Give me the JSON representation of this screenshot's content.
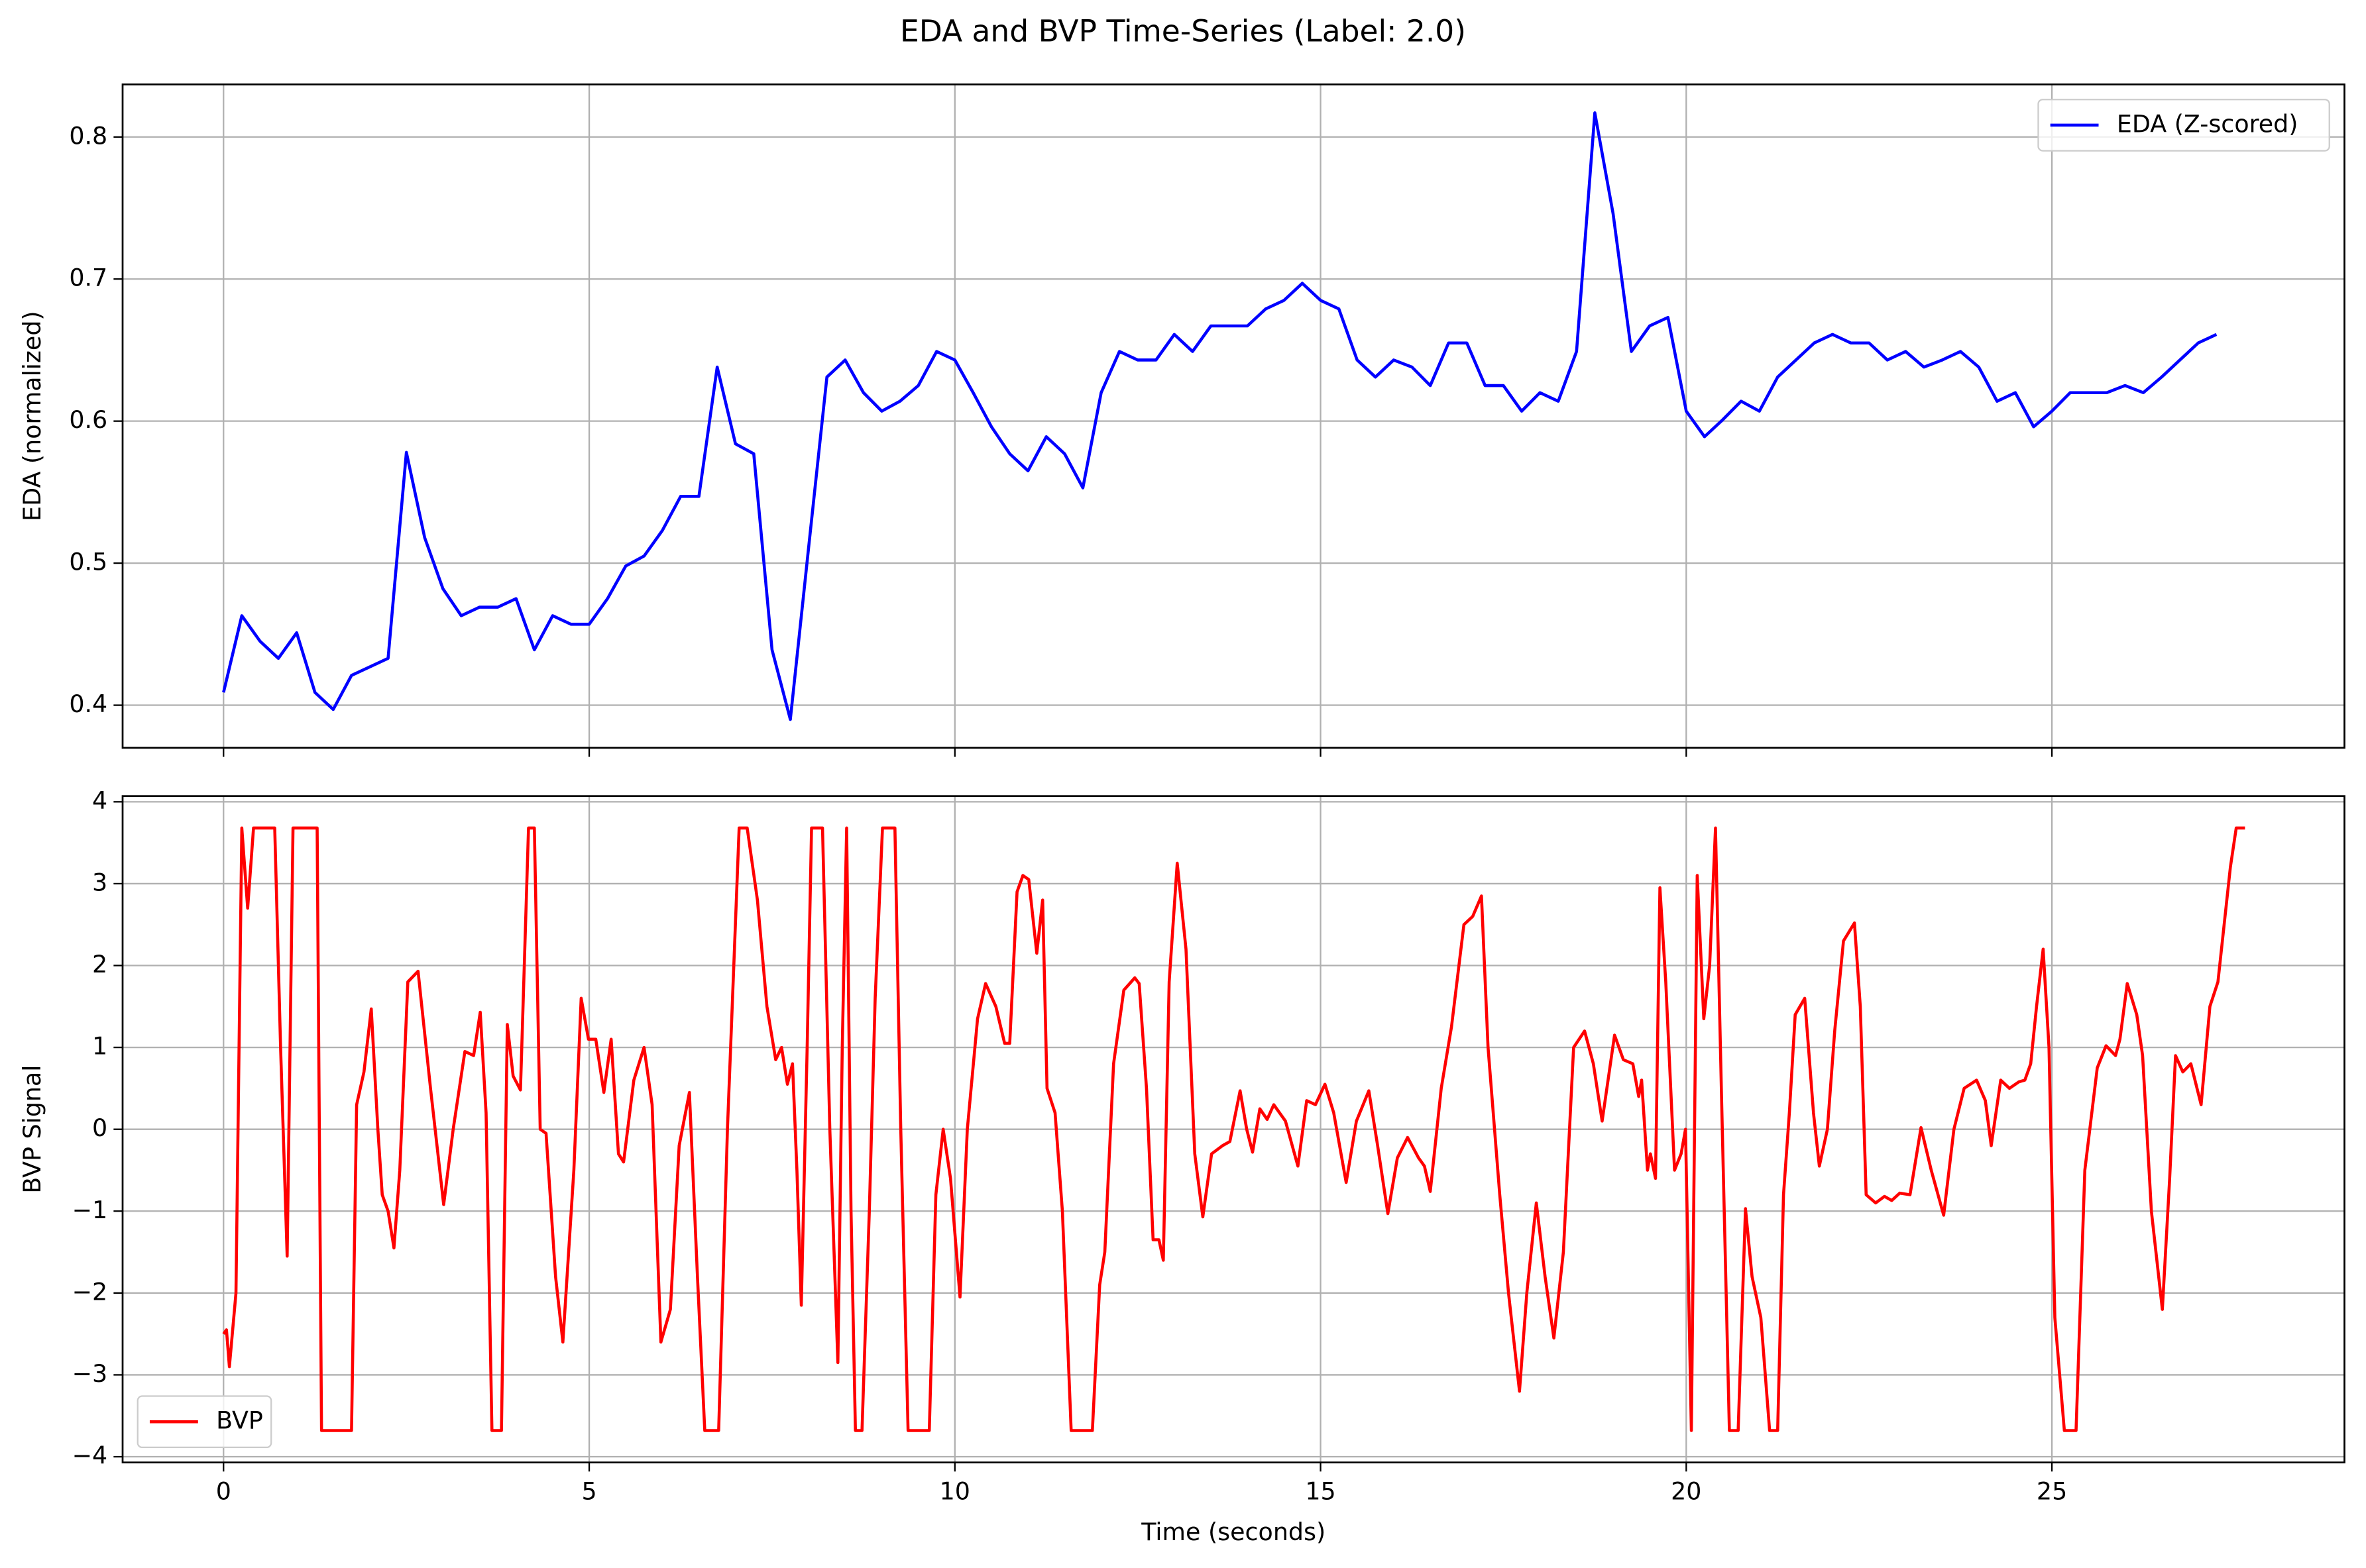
{
  "title": "EDA and BVP Time-Series (Label: 2.0)",
  "chart_data": [
    {
      "type": "line",
      "ylabel": "EDA (normalized)",
      "legend": "upper right",
      "grid": true,
      "show_xticklabels": false,
      "xlim": [
        -1.38,
        29.0
      ],
      "ylim": [
        0.37,
        0.837
      ],
      "xticks": [
        0,
        5,
        10,
        15,
        20,
        25
      ],
      "yticks": [
        0.4,
        0.5,
        0.6,
        0.7,
        0.8
      ],
      "series": [
        {
          "name": "EDA (Z-scored)",
          "color": "#0000ff",
          "x": [
            0,
            0.25,
            0.5,
            0.75,
            1,
            1.25,
            1.5,
            1.75,
            2,
            2.25,
            2.5,
            2.75,
            3,
            3.25,
            3.5,
            3.75,
            4,
            4.25,
            4.5,
            4.75,
            5,
            5.25,
            5.5,
            5.75,
            6,
            6.25,
            6.5,
            6.75,
            7,
            7.25,
            7.5,
            7.75,
            8,
            8.25,
            8.5,
            8.75,
            9,
            9.25,
            9.5,
            9.75,
            10,
            10.25,
            10.5,
            10.75,
            11,
            11.25,
            11.5,
            11.75,
            12,
            12.25,
            12.5,
            12.75,
            13,
            13.25,
            13.5,
            13.75,
            14,
            14.25,
            14.5,
            14.75,
            15,
            15.25,
            15.5,
            15.75,
            16,
            16.25,
            16.5,
            16.75,
            17,
            17.25,
            17.5,
            17.75,
            18,
            18.25,
            18.5,
            18.75,
            19,
            19.25,
            19.5,
            19.75,
            20,
            20.25,
            20.5,
            20.75,
            21,
            21.25,
            21.5,
            21.75,
            22,
            22.25,
            22.5,
            22.75,
            23,
            23.25,
            23.5,
            23.75,
            24,
            24.25,
            24.5,
            24.75,
            25,
            25.25,
            25.5,
            25.75,
            26,
            26.25,
            26.5,
            26.75,
            27,
            27.25
          ],
          "values": [
            0.409,
            0.463,
            0.445,
            0.433,
            0.451,
            0.409,
            0.397,
            0.421,
            0.427,
            0.433,
            0.578,
            0.518,
            0.482,
            0.463,
            0.469,
            0.469,
            0.475,
            0.439,
            0.463,
            0.457,
            0.457,
            0.475,
            0.498,
            0.505,
            0.523,
            0.547,
            0.547,
            0.638,
            0.584,
            0.577,
            0.439,
            0.39,
            0.511,
            0.631,
            0.643,
            0.62,
            0.607,
            0.614,
            0.625,
            0.649,
            0.643,
            0.62,
            0.596,
            0.577,
            0.565,
            0.589,
            0.577,
            0.553,
            0.62,
            0.649,
            0.643,
            0.643,
            0.661,
            0.649,
            0.667,
            0.667,
            0.667,
            0.679,
            0.685,
            0.697,
            0.685,
            0.679,
            0.643,
            0.631,
            0.643,
            0.638,
            0.625,
            0.655,
            0.655,
            0.625,
            0.625,
            0.607,
            0.62,
            0.614,
            0.649,
            0.817,
            0.746,
            0.649,
            0.667,
            0.673,
            0.607,
            0.589,
            0.601,
            0.614,
            0.607,
            0.631,
            0.643,
            0.655,
            0.661,
            0.655,
            0.655,
            0.643,
            0.649,
            0.638,
            0.643,
            0.649,
            0.638,
            0.614,
            0.62,
            0.596,
            0.607,
            0.62,
            0.62,
            0.62,
            0.625,
            0.62,
            0.631,
            0.643,
            0.655,
            0.661
          ]
        }
      ]
    },
    {
      "type": "line",
      "xlabel": "Time (seconds)",
      "ylabel": "BVP Signal",
      "legend": "lower left",
      "grid": true,
      "show_xticklabels": true,
      "xlim": [
        -1.38,
        29.0
      ],
      "ylim": [
        -4.07,
        4.07
      ],
      "xticks": [
        0,
        5,
        10,
        15,
        20,
        25
      ],
      "yticks": [
        {
          "value": -4,
          "label": "−4"
        },
        {
          "value": -3,
          "label": "−3"
        },
        {
          "value": -2,
          "label": "−2"
        },
        {
          "value": -1,
          "label": "−1"
        },
        0,
        1,
        2,
        3,
        4
      ],
      "series": [
        {
          "name": "BVP",
          "color": "#ff0000",
          "x": [
            0,
            0.04,
            0.08,
            0.17,
            0.25,
            0.33,
            0.41,
            0.7,
            0.78,
            0.87,
            0.95,
            1.28,
            1.34,
            1.75,
            1.82,
            1.92,
            2.02,
            2.11,
            2.17,
            2.25,
            2.33,
            2.41,
            2.52,
            2.66,
            2.83,
            3.01,
            3.14,
            3.3,
            3.42,
            3.51,
            3.59,
            3.67,
            3.8,
            3.88,
            3.96,
            4.06,
            4.17,
            4.25,
            4.33,
            4.41,
            4.54,
            4.64,
            4.79,
            4.89,
            4.99,
            5.09,
            5.2,
            5.3,
            5.4,
            5.47,
            5.61,
            5.75,
            5.86,
            5.98,
            6.11,
            6.23,
            6.37,
            6.48,
            6.58,
            6.77,
            6.89,
            7.05,
            7.16,
            7.3,
            7.43,
            7.55,
            7.63,
            7.71,
            7.78,
            7.84,
            7.9,
            7.98,
            8.04,
            8.19,
            8.29,
            8.4,
            8.46,
            8.52,
            8.58,
            8.64,
            8.73,
            8.83,
            8.91,
            9.01,
            9.18,
            9.26,
            9.36,
            9.65,
            9.74,
            9.84,
            9.94,
            10.07,
            10.17,
            10.31,
            10.42,
            10.56,
            10.68,
            10.75,
            10.85,
            10.93,
            11.01,
            11.12,
            11.2,
            11.26,
            11.37,
            11.47,
            11.59,
            11.88,
            11.98,
            12.05,
            12.17,
            12.31,
            12.46,
            12.52,
            12.62,
            12.71,
            12.79,
            12.85,
            12.93,
            13.04,
            13.16,
            13.28,
            13.39,
            13.51,
            13.66,
            13.76,
            13.9,
            13.99,
            14.07,
            14.17,
            14.27,
            14.36,
            14.52,
            14.69,
            14.81,
            14.93,
            15.06,
            15.18,
            15.35,
            15.49,
            15.66,
            15.78,
            15.92,
            16.05,
            16.19,
            16.34,
            16.42,
            16.5,
            16.65,
            16.79,
            16.96,
            17.08,
            17.2,
            17.29,
            17.45,
            17.57,
            17.72,
            17.82,
            17.95,
            18.07,
            18.19,
            18.32,
            18.46,
            18.61,
            18.73,
            18.85,
            19.02,
            19.14,
            19.27,
            19.35,
            19.39,
            19.47,
            19.51,
            19.58,
            19.64,
            19.72,
            19.84,
            19.93,
            19.99,
            20.07,
            20.15,
            20.24,
            20.32,
            20.4,
            20.48,
            20.59,
            20.71,
            20.81,
            20.9,
            21.02,
            21.14,
            21.25,
            21.33,
            21.41,
            21.49,
            21.62,
            21.74,
            21.82,
            21.93,
            22.03,
            22.15,
            22.3,
            22.38,
            22.46,
            22.59,
            22.71,
            22.81,
            22.92,
            23.06,
            23.21,
            23.35,
            23.52,
            23.66,
            23.8,
            23.97,
            24.09,
            24.17,
            24.3,
            24.42,
            24.55,
            24.63,
            24.71,
            24.79,
            24.88,
            24.96,
            25.04,
            25.17,
            25.33,
            25.45,
            25.62,
            25.74,
            25.87,
            25.93,
            26.03,
            26.16,
            26.24,
            26.36,
            26.51,
            26.61,
            26.69,
            26.79,
            26.9,
            27.04,
            27.16,
            27.27,
            27.44,
            27.52,
            27.64
          ],
          "values": [
            -2.5,
            -2.45,
            -2.9,
            -2.0,
            3.68,
            2.7,
            3.68,
            3.68,
            1.0,
            -1.55,
            3.68,
            3.68,
            -3.68,
            -3.68,
            0.3,
            0.7,
            1.47,
            0.0,
            -0.8,
            -1.0,
            -1.45,
            -0.5,
            1.8,
            1.93,
            0.5,
            -0.92,
            0.0,
            0.95,
            0.9,
            1.43,
            0.2,
            -3.68,
            -3.68,
            1.28,
            0.65,
            0.48,
            3.68,
            3.68,
            0.0,
            -0.05,
            -1.8,
            -2.6,
            -0.5,
            1.6,
            1.1,
            1.1,
            0.45,
            1.1,
            -0.3,
            -0.4,
            0.6,
            1.0,
            0.3,
            -2.6,
            -2.2,
            -0.2,
            0.45,
            -1.8,
            -3.68,
            -3.68,
            0.0,
            3.68,
            3.68,
            2.8,
            1.5,
            0.85,
            1.0,
            0.55,
            0.8,
            -0.5,
            -2.15,
            1.0,
            3.68,
            3.68,
            0.0,
            -2.85,
            1.0,
            3.68,
            -1.0,
            -3.68,
            -3.68,
            -1.0,
            1.6,
            3.68,
            3.68,
            0.0,
            -3.68,
            -3.68,
            -0.8,
            0.0,
            -0.6,
            -2.05,
            0.0,
            1.35,
            1.78,
            1.5,
            1.05,
            1.05,
            2.9,
            3.1,
            3.05,
            2.15,
            2.8,
            0.5,
            0.2,
            -1.0,
            -3.68,
            -3.68,
            -1.9,
            -1.5,
            0.8,
            1.7,
            1.85,
            1.78,
            0.5,
            -1.35,
            -1.35,
            -1.6,
            1.8,
            3.25,
            2.2,
            -0.3,
            -1.07,
            -0.3,
            -0.2,
            -0.15,
            0.47,
            0.0,
            -0.28,
            0.25,
            0.12,
            0.3,
            0.1,
            -0.45,
            0.35,
            0.3,
            0.55,
            0.2,
            -0.65,
            0.1,
            0.47,
            -0.2,
            -1.03,
            -0.35,
            -0.1,
            -0.35,
            -0.45,
            -0.76,
            0.5,
            1.25,
            2.5,
            2.6,
            2.85,
            1.0,
            -0.8,
            -2.0,
            -3.2,
            -2.0,
            -0.9,
            -1.8,
            -2.55,
            -1.5,
            1.0,
            1.2,
            0.8,
            0.1,
            1.15,
            0.85,
            0.8,
            0.4,
            0.6,
            -0.5,
            -0.3,
            -0.6,
            2.95,
            1.8,
            -0.5,
            -0.3,
            0.0,
            -3.68,
            3.1,
            1.35,
            2.0,
            3.68,
            0.5,
            -3.68,
            -3.68,
            -0.97,
            -1.8,
            -2.3,
            -3.68,
            -3.68,
            -0.8,
            0.2,
            1.4,
            1.6,
            0.2,
            -0.45,
            0.0,
            1.2,
            2.3,
            2.52,
            1.5,
            -0.8,
            -0.9,
            -0.82,
            -0.87,
            -0.78,
            -0.8,
            0.02,
            -0.5,
            -1.05,
            0.0,
            0.5,
            0.6,
            0.35,
            -0.2,
            0.6,
            0.5,
            0.58,
            0.6,
            0.8,
            1.5,
            2.2,
            1.0,
            -2.3,
            -3.68,
            -3.68,
            -0.5,
            0.75,
            1.02,
            0.9,
            1.1,
            1.78,
            1.4,
            0.9,
            -1.0,
            -2.2,
            -0.6,
            0.9,
            0.7,
            0.8,
            0.3,
            1.5,
            1.8,
            3.2,
            3.68,
            3.68
          ]
        }
      ]
    }
  ]
}
